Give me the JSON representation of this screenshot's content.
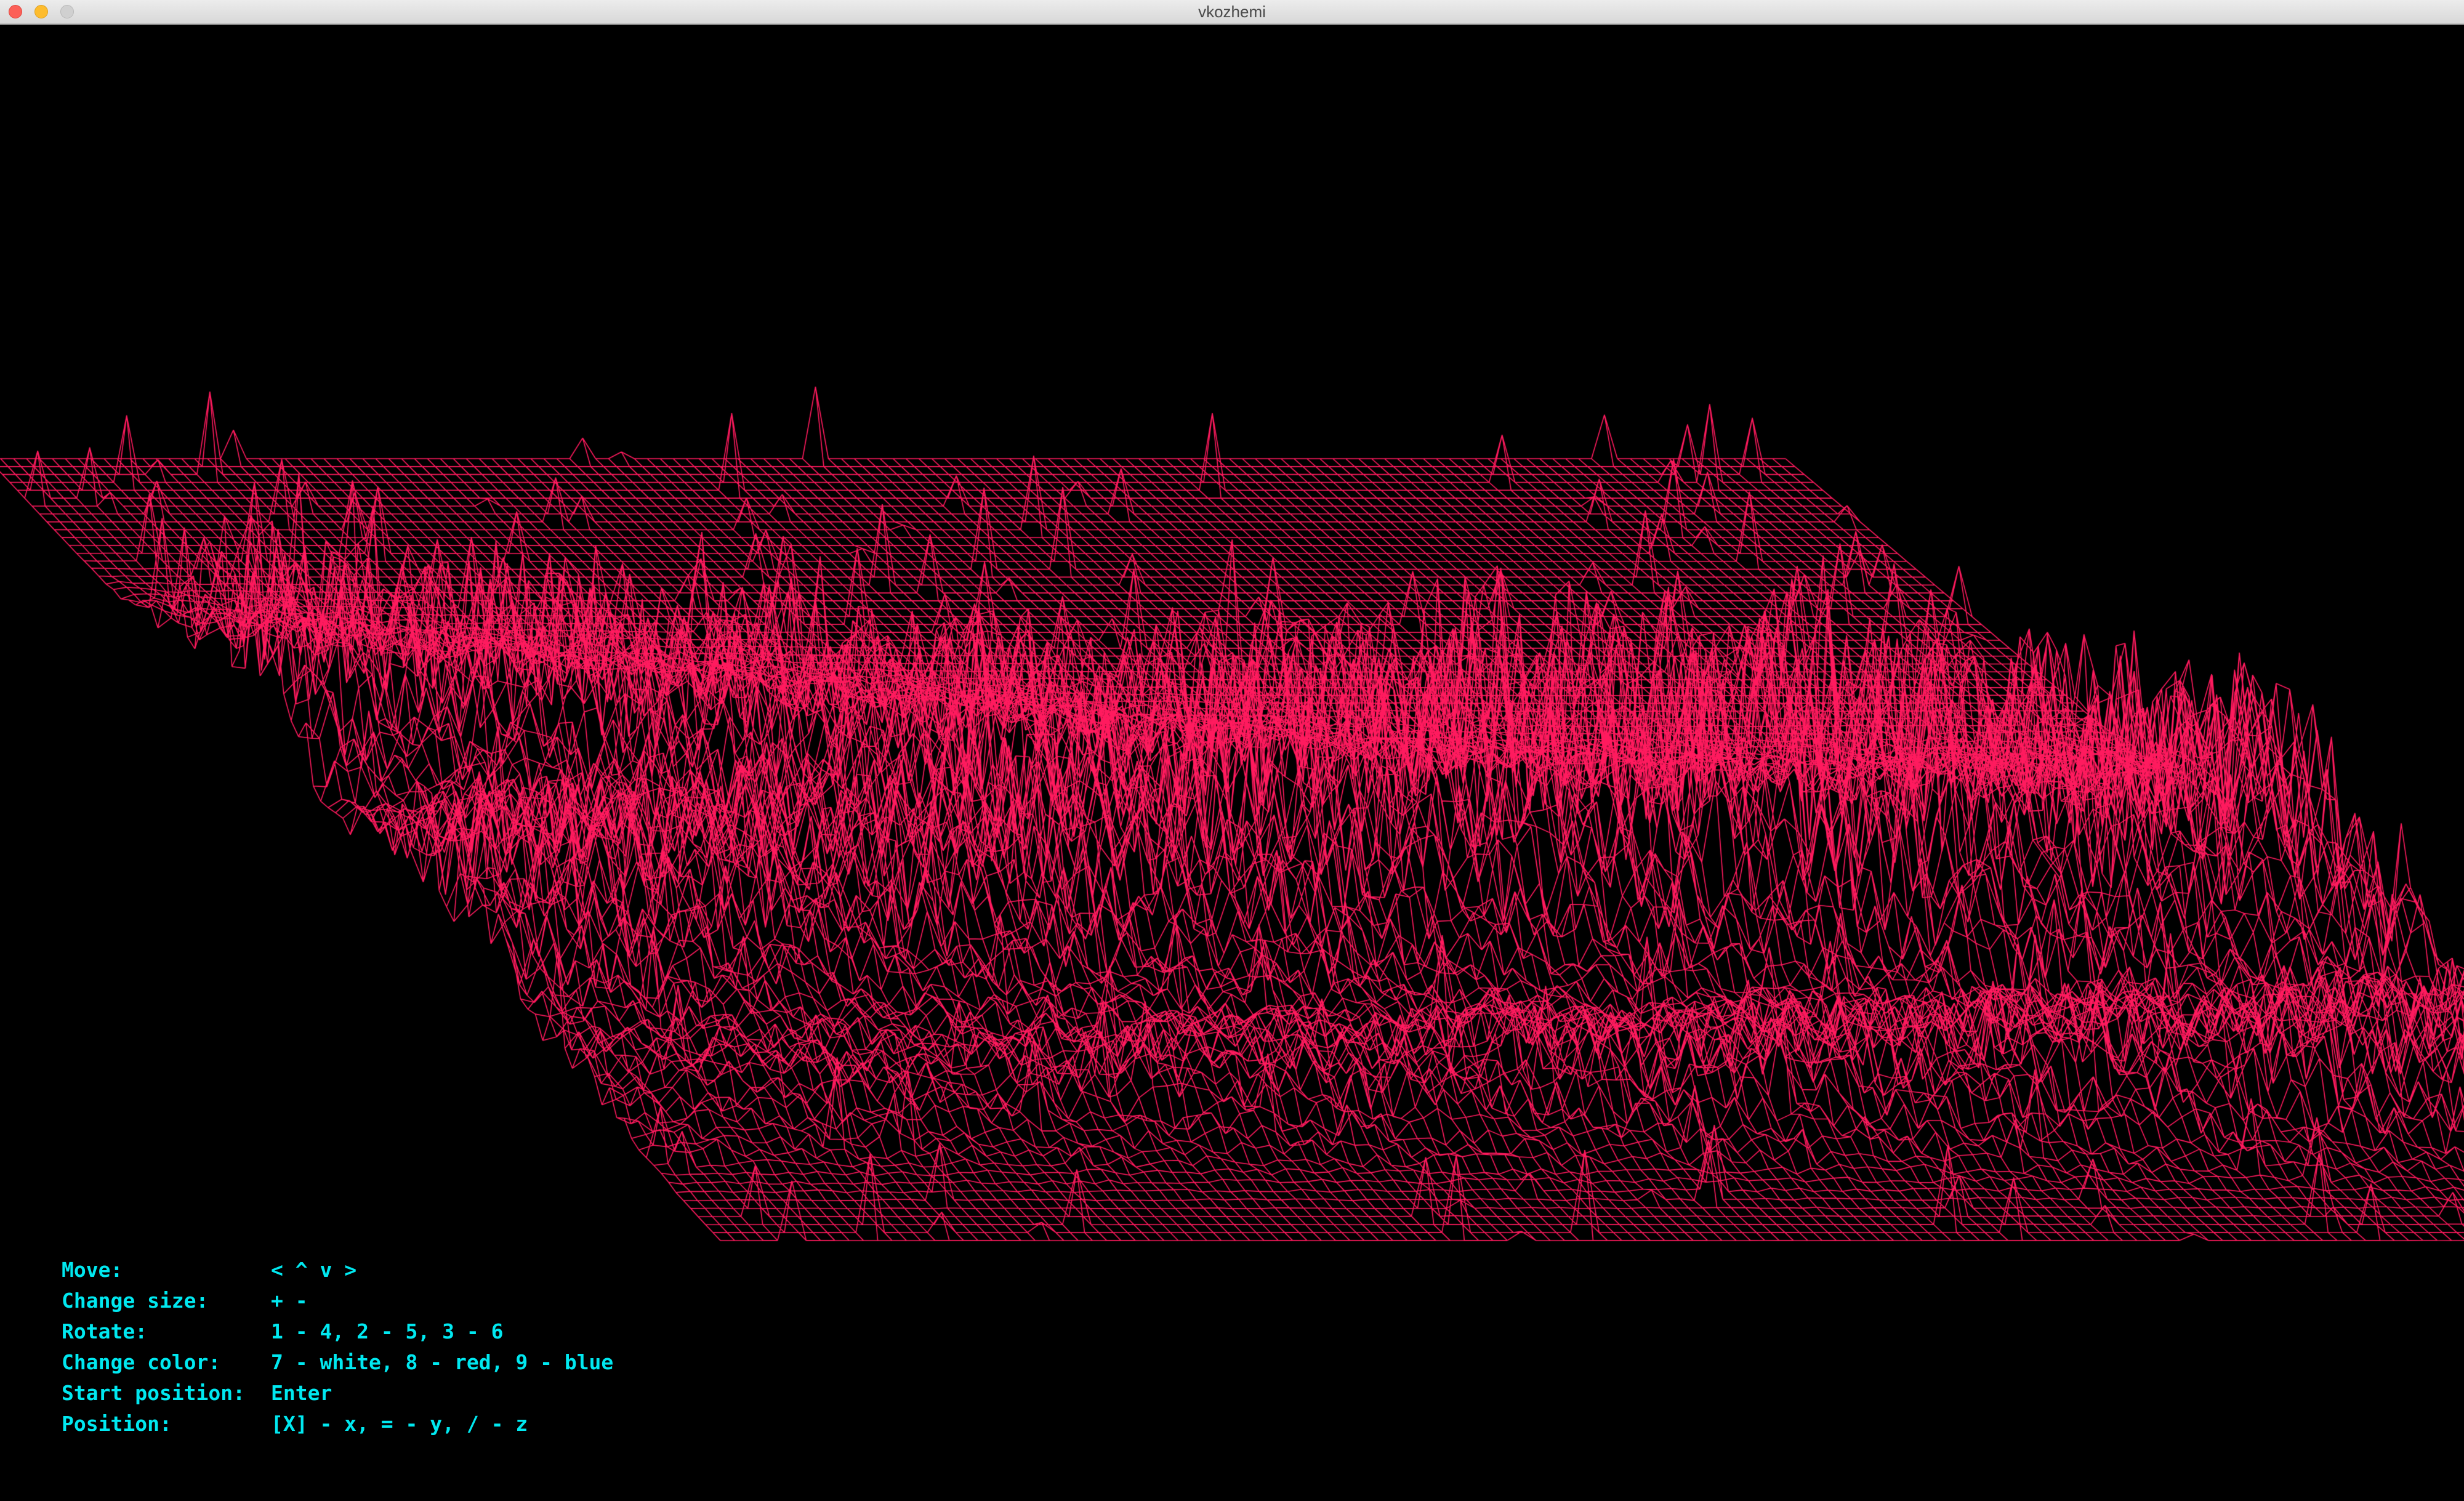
{
  "window": {
    "title": "vkozhemi"
  },
  "wireframe": {
    "color": "#ff1a5e",
    "background": "#000000"
  },
  "help": {
    "text_color": "#00e8f0",
    "rows": [
      {
        "key": "Move:",
        "value": "< ^ v >"
      },
      {
        "key": "Change size:",
        "value": "+ -"
      },
      {
        "key": "Rotate:",
        "value": "1 - 4, 2 - 5, 3 - 6"
      },
      {
        "key": "Change color:",
        "value": "7 - white, 8 - red, 9 - blue"
      },
      {
        "key": "Start position:",
        "value": "Enter"
      },
      {
        "key": "Position:",
        "value": "[X] - x, = - y, / - z"
      }
    ]
  }
}
